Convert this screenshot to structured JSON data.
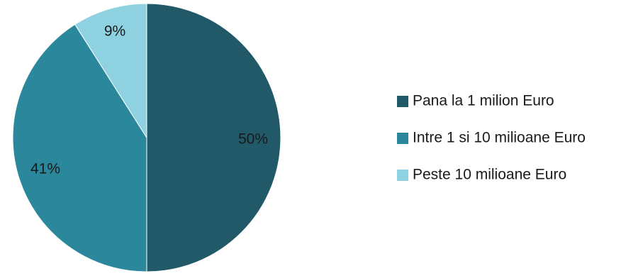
{
  "chart_data": {
    "type": "pie",
    "categories": [
      "Pana la 1 milion Euro",
      "Intre 1 si 10 milioane Euro",
      "Peste 10 milioane Euro"
    ],
    "values": [
      50,
      41,
      9
    ],
    "data_labels": [
      "50%",
      "41%",
      "9%"
    ],
    "colors": [
      "#215968",
      "#2B889C",
      "#8ED1E0"
    ],
    "legend_position": "right",
    "start_angle": "12 o'clock",
    "direction": "clockwise"
  }
}
